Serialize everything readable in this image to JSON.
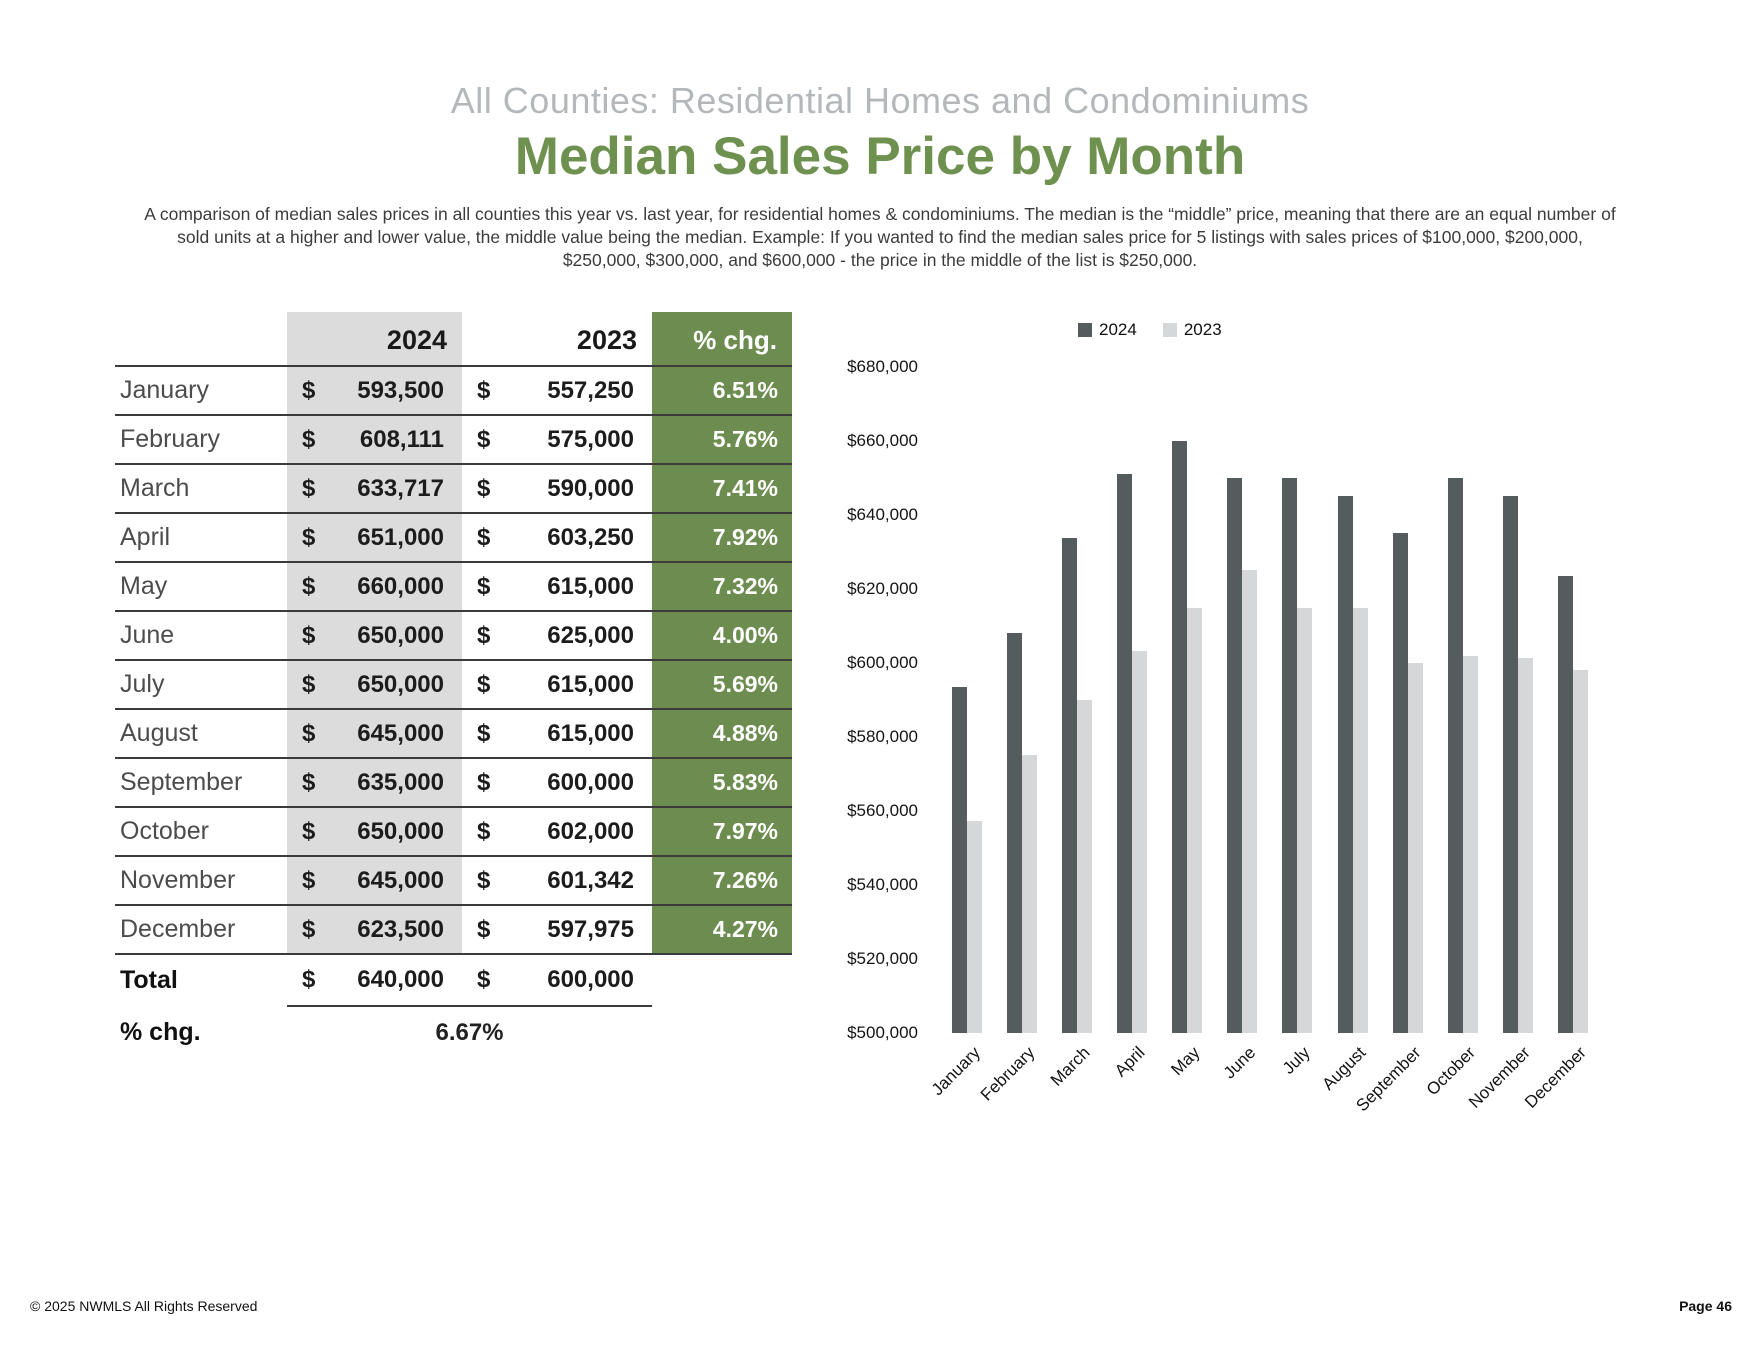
{
  "page": {
    "subtitle": "All Counties: Residential Homes and Condominiums",
    "title": "Median Sales Price by Month",
    "description": "A comparison of median sales prices in all counties this year vs. last year, for residential homes & condominiums. The median is the “middle” price, meaning that there are an equal number of sold units at a higher and lower value, the middle value being the median. Example: If you wanted to find the median sales price for 5 listings with sales prices of $100,000, $200,000, $250,000, $300,000, and $600,000 - the price in the middle of the list is $250,000."
  },
  "table": {
    "columns": [
      "",
      "2024",
      "2023",
      "% chg."
    ],
    "currency_symbol": "$",
    "rows": [
      {
        "month": "January",
        "y2024": "593,500",
        "y2023": "557,250",
        "pct": "6.51%"
      },
      {
        "month": "February",
        "y2024": "608,111",
        "y2023": "575,000",
        "pct": "5.76%"
      },
      {
        "month": "March",
        "y2024": "633,717",
        "y2023": "590,000",
        "pct": "7.41%"
      },
      {
        "month": "April",
        "y2024": "651,000",
        "y2023": "603,250",
        "pct": "7.92%"
      },
      {
        "month": "May",
        "y2024": "660,000",
        "y2023": "615,000",
        "pct": "7.32%"
      },
      {
        "month": "June",
        "y2024": "650,000",
        "y2023": "625,000",
        "pct": "4.00%"
      },
      {
        "month": "July",
        "y2024": "650,000",
        "y2023": "615,000",
        "pct": "5.69%"
      },
      {
        "month": "August",
        "y2024": "645,000",
        "y2023": "615,000",
        "pct": "4.88%"
      },
      {
        "month": "September",
        "y2024": "635,000",
        "y2023": "600,000",
        "pct": "5.83%"
      },
      {
        "month": "October",
        "y2024": "650,000",
        "y2023": "602,000",
        "pct": "7.97%"
      },
      {
        "month": "November",
        "y2024": "645,000",
        "y2023": "601,342",
        "pct": "7.26%"
      },
      {
        "month": "December",
        "y2024": "623,500",
        "y2023": "597,975",
        "pct": "4.27%"
      }
    ],
    "total": {
      "label": "Total",
      "y2024": "640,000",
      "y2023": "600,000"
    },
    "pct_change": {
      "label": "% chg.",
      "value": "6.67%"
    }
  },
  "chart_data": {
    "type": "bar",
    "title": "",
    "categories": [
      "January",
      "February",
      "March",
      "April",
      "May",
      "June",
      "July",
      "August",
      "September",
      "October",
      "November",
      "December"
    ],
    "series": [
      {
        "name": "2024",
        "color": "#555c5e",
        "values": [
          593500,
          608111,
          633717,
          651000,
          660000,
          650000,
          650000,
          645000,
          635000,
          650000,
          645000,
          623500
        ]
      },
      {
        "name": "2023",
        "color": "#d5d7d8",
        "values": [
          557250,
          575000,
          590000,
          603250,
          615000,
          625000,
          615000,
          615000,
          600000,
          602000,
          601342,
          597975
        ]
      }
    ],
    "ylim": [
      500000,
      680000
    ],
    "ytick_step": 20000,
    "ytick_labels": [
      "$680,000",
      "$660,000",
      "$640,000",
      "$620,000",
      "$600,000",
      "$580,000",
      "$560,000",
      "$540,000",
      "$520,000",
      "$500,000"
    ],
    "legend_position": "top",
    "grid": false
  },
  "footer": {
    "copyright": "© 2025 NWMLS All Rights Reserved",
    "page_number": "Page 46"
  },
  "colors": {
    "title_green": "#6e9150",
    "subtitle_gray": "#b5b8ba",
    "table_header_green": "#6d8d50",
    "table_col_gray": "#dcdcdc",
    "bar_2024": "#555c5e",
    "bar_2023": "#d5d7d8",
    "row_line": "#3b3b3b"
  }
}
